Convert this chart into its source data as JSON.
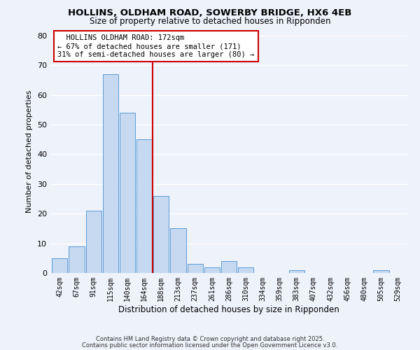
{
  "title": "HOLLINS, OLDHAM ROAD, SOWERBY BRIDGE, HX6 4EB",
  "subtitle": "Size of property relative to detached houses in Ripponden",
  "xlabel": "Distribution of detached houses by size in Ripponden",
  "ylabel": "Number of detached properties",
  "bin_labels": [
    "42sqm",
    "67sqm",
    "91sqm",
    "115sqm",
    "140sqm",
    "164sqm",
    "188sqm",
    "213sqm",
    "237sqm",
    "261sqm",
    "286sqm",
    "310sqm",
    "334sqm",
    "359sqm",
    "383sqm",
    "407sqm",
    "432sqm",
    "456sqm",
    "480sqm",
    "505sqm",
    "529sqm"
  ],
  "bar_heights": [
    5,
    9,
    21,
    67,
    54,
    45,
    26,
    15,
    3,
    2,
    4,
    2,
    0,
    0,
    1,
    0,
    0,
    0,
    0,
    1,
    0
  ],
  "bar_color": "#c6d9f0",
  "bar_edge_color": "#5b9bd5",
  "vline_x": 5.5,
  "vline_color": "#cc0000",
  "annotation_title": "HOLLINS OLDHAM ROAD: 172sqm",
  "annotation_line1": "← 67% of detached houses are smaller (171)",
  "annotation_line2": "31% of semi-detached houses are larger (80) →",
  "annotation_box_color": "#ffffff",
  "annotation_box_edge": "#cc0000",
  "ylim": [
    0,
    82
  ],
  "yticks": [
    0,
    10,
    20,
    30,
    40,
    50,
    60,
    70,
    80
  ],
  "bg_color": "#eef2fb",
  "grid_color": "#ffffff",
  "footer1": "Contains HM Land Registry data © Crown copyright and database right 2025.",
  "footer2": "Contains public sector information licensed under the Open Government Licence v3.0."
}
